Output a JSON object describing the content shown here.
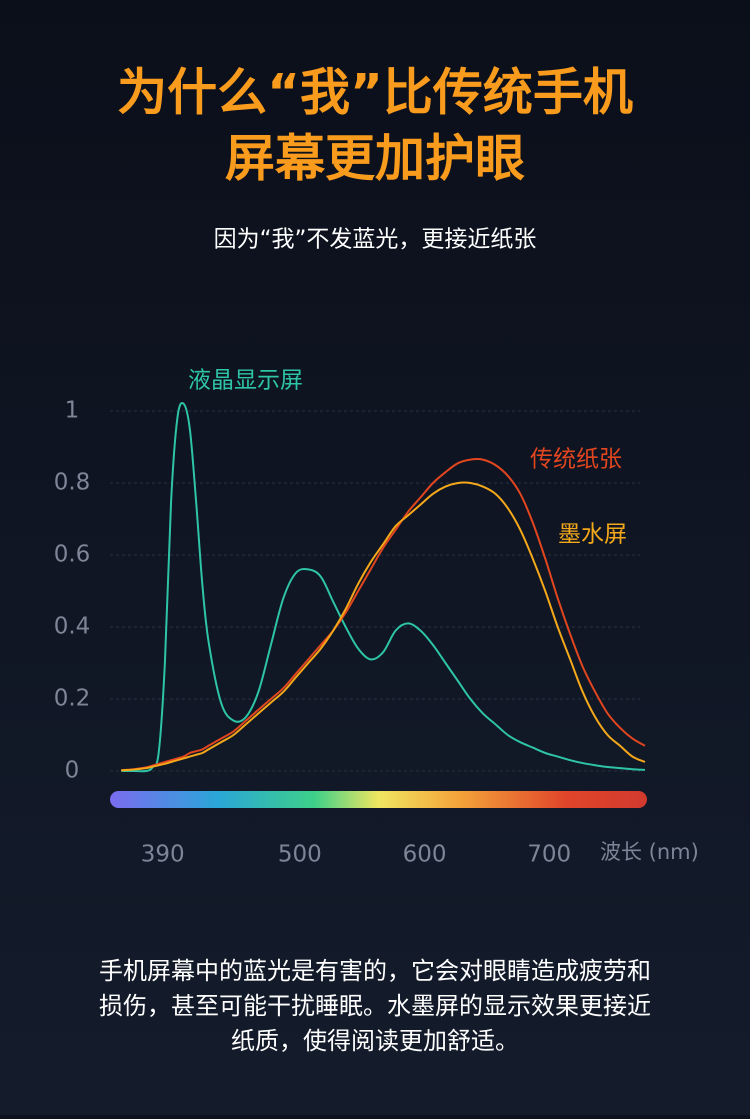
{
  "header": {
    "title_lines": [
      "为什么“我”比传统手机",
      "屏幕更加护眼"
    ],
    "subtitle": "因为“我”不发蓝光，更接近纸张"
  },
  "chart_data": {
    "type": "line",
    "x": [
      360,
      370,
      380,
      385,
      390,
      395,
      400,
      405,
      410,
      415,
      420,
      425,
      430,
      440,
      450,
      460,
      470,
      480,
      490,
      500,
      510,
      520,
      530,
      540,
      550,
      560,
      570,
      580,
      590,
      600,
      610,
      620,
      630,
      640,
      650,
      660,
      670,
      680,
      690,
      700,
      710,
      720,
      730,
      740,
      750,
      760,
      770,
      780
    ],
    "series": [
      {
        "name": "液晶显示屏",
        "color": "#2ec4a6",
        "values": [
          0,
          0,
          0,
          0.01,
          0.05,
          0.3,
          0.75,
          0.98,
          1.02,
          0.95,
          0.75,
          0.52,
          0.36,
          0.19,
          0.14,
          0.15,
          0.22,
          0.35,
          0.48,
          0.55,
          0.56,
          0.54,
          0.47,
          0.4,
          0.34,
          0.31,
          0.33,
          0.39,
          0.41,
          0.39,
          0.35,
          0.3,
          0.25,
          0.2,
          0.16,
          0.13,
          0.1,
          0.08,
          0.065,
          0.05,
          0.04,
          0.03,
          0.022,
          0.016,
          0.011,
          0.008,
          0.005,
          0.003
        ]
      },
      {
        "name": "传统纸张",
        "color": "#e2461f",
        "values": [
          0.002,
          0.005,
          0.01,
          0.015,
          0.02,
          0.025,
          0.03,
          0.035,
          0.04,
          0.05,
          0.055,
          0.06,
          0.07,
          0.09,
          0.11,
          0.14,
          0.17,
          0.2,
          0.23,
          0.27,
          0.31,
          0.35,
          0.39,
          0.44,
          0.5,
          0.56,
          0.62,
          0.67,
          0.72,
          0.76,
          0.8,
          0.83,
          0.855,
          0.865,
          0.865,
          0.85,
          0.82,
          0.77,
          0.69,
          0.59,
          0.48,
          0.38,
          0.29,
          0.22,
          0.16,
          0.12,
          0.09,
          0.07
        ]
      },
      {
        "name": "墨水屏",
        "color": "#f4a81a",
        "values": [
          0.002,
          0.004,
          0.008,
          0.012,
          0.016,
          0.02,
          0.025,
          0.03,
          0.035,
          0.04,
          0.045,
          0.05,
          0.06,
          0.08,
          0.1,
          0.13,
          0.16,
          0.19,
          0.22,
          0.26,
          0.3,
          0.34,
          0.39,
          0.45,
          0.52,
          0.58,
          0.63,
          0.68,
          0.71,
          0.74,
          0.77,
          0.79,
          0.8,
          0.8,
          0.79,
          0.77,
          0.73,
          0.67,
          0.59,
          0.5,
          0.4,
          0.31,
          0.22,
          0.15,
          0.1,
          0.07,
          0.04,
          0.025
        ]
      }
    ],
    "xlim": [
      355,
      780
    ],
    "xticks": [
      390,
      500,
      600,
      700
    ],
    "x_label": "波长 (nm)",
    "ylim": [
      0,
      1
    ],
    "yticks": [
      0,
      0.2,
      0.4,
      0.6,
      0.8,
      1
    ],
    "grid": true
  },
  "footer": {
    "lines": [
      "手机屏幕中的蓝光是有害的，它会对眼睛造成疲劳和",
      "损伤，甚至可能干扰睡眠。水墨屏的显示效果更接近",
      "纸质，使得阅读更加舒适。"
    ]
  }
}
